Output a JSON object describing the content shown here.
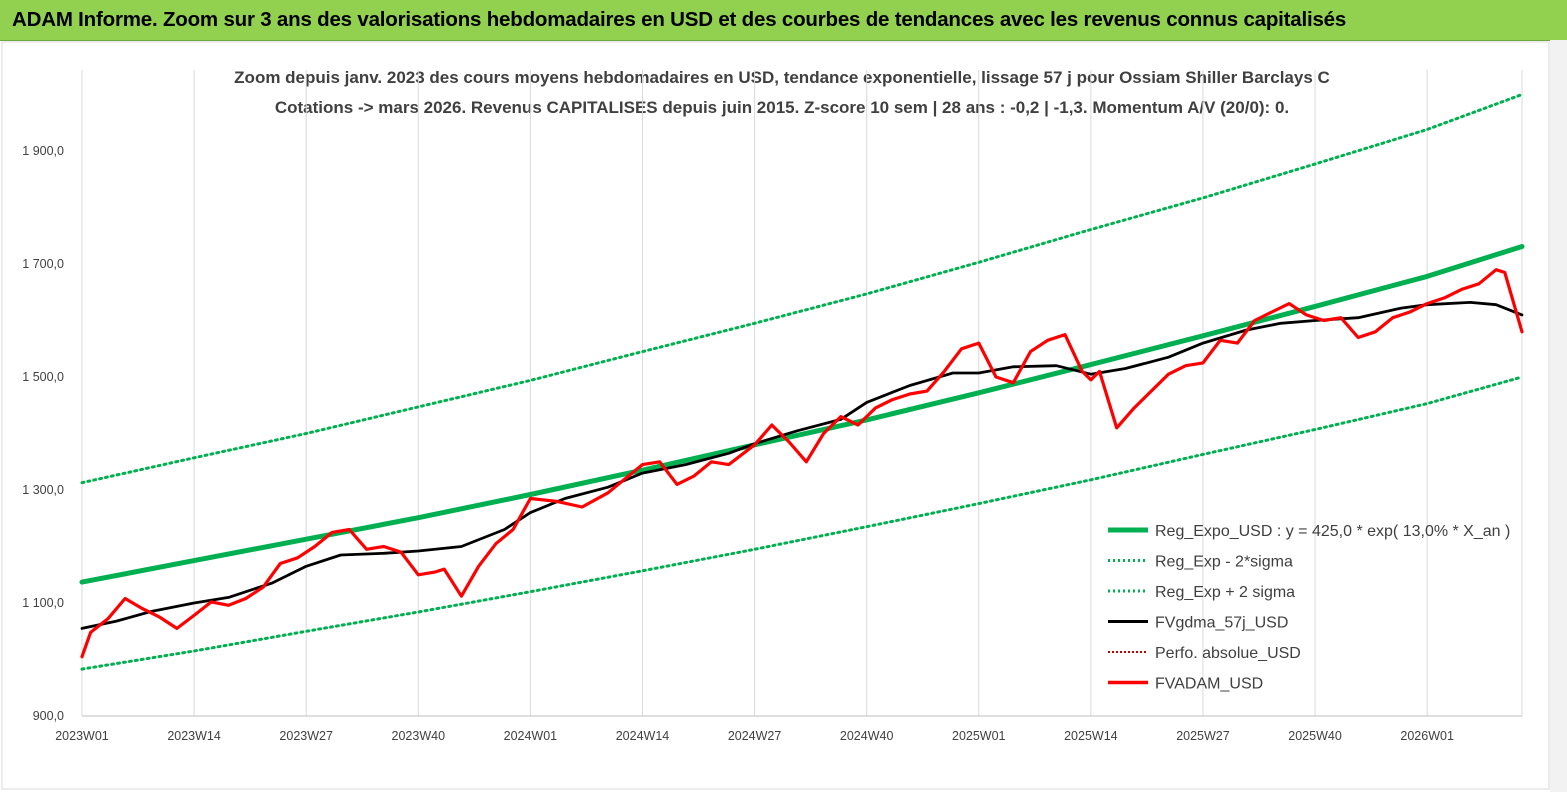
{
  "banner": {
    "title": "ADAM Informe. Zoom sur 3 ans des valorisations hebdomadaires en USD et des courbes de tendances avec les revenus connus capitalisés"
  },
  "colors": {
    "banner_bg": "#92d050",
    "reg_expo": "#00b050",
    "sigma": "#00b050",
    "fvgdma": "#000000",
    "perfo": "#c00000",
    "fvadam": "#ff0000"
  },
  "chart_data": {
    "type": "line",
    "title": "Zoom depuis janv. 2023 des cours moyens hebdomadaires en USD, tendance exponentielle, lissage 57 j pour Ossiam Shiller Barclays C",
    "subtitle": "Cotations -> mars 2026. Revenus CAPITALISES depuis juin 2015. Z-score 10 sem | 28 ans : -0,2 | -1,3. Momentum A/V (20/0): 0.",
    "xlabel": "",
    "ylabel": "",
    "ylim": [
      900,
      1950
    ],
    "yticks": [
      "900,0",
      "1 100,0",
      "1 300,0",
      "1 500,0",
      "1 700,0",
      "1 900,0"
    ],
    "xticks": [
      "2023W01",
      "2023W14",
      "2023W27",
      "2023W40",
      "2024W01",
      "2024W14",
      "2024W27",
      "2024W40",
      "2025W01",
      "2025W14",
      "2025W27",
      "2025W40",
      "2026W01"
    ],
    "grid": "vertical",
    "legend_position": "bottom-right",
    "legend": [
      "Reg_Expo_USD : y = 425,0 * exp( 13,0% *  X_an )",
      "Reg_Exp - 2*sigma",
      "Reg_Exp + 2 sigma",
      "FVgdma_57j_USD",
      "Perfo. absolue_USD",
      "FVADAM_USD"
    ],
    "series": [
      {
        "name": "Reg_Expo_USD : y = 425,0 * exp( 13,0% *  X_an )",
        "x": [
          "2023W01",
          "2023W14",
          "2023W27",
          "2023W40",
          "2024W01",
          "2024W14",
          "2024W27",
          "2024W40",
          "2025W01",
          "2025W14",
          "2025W27",
          "2025W40",
          "2026W01",
          "2026W12"
        ],
        "values": [
          1137,
          1175,
          1213,
          1251,
          1292,
          1335,
          1380,
          1424,
          1472,
          1522,
          1573,
          1625,
          1678,
          1731
        ]
      },
      {
        "name": "Reg_Exp - 2*sigma",
        "x": [
          "2023W01",
          "2023W14",
          "2023W27",
          "2023W40",
          "2024W01",
          "2024W14",
          "2024W27",
          "2024W40",
          "2025W01",
          "2025W14",
          "2025W27",
          "2025W40",
          "2026W01",
          "2026W12"
        ],
        "values": [
          983,
          1015,
          1050,
          1084,
          1120,
          1157,
          1195,
          1235,
          1276,
          1318,
          1363,
          1407,
          1453,
          1500
        ]
      },
      {
        "name": "Reg_Exp + 2 sigma",
        "x": [
          "2023W01",
          "2023W14",
          "2023W27",
          "2023W40",
          "2024W01",
          "2024W14",
          "2024W27",
          "2024W40",
          "2025W01",
          "2025W14",
          "2025W27",
          "2025W40",
          "2026W01",
          "2026W12"
        ],
        "values": [
          1313,
          1357,
          1400,
          1447,
          1494,
          1545,
          1595,
          1647,
          1703,
          1761,
          1817,
          1877,
          1938,
          2000
        ]
      },
      {
        "name": "FVgdma_57j_USD",
        "x": [
          "2023W01",
          "2023W05",
          "2023W09",
          "2023W14",
          "2023W18",
          "2023W23",
          "2023W27",
          "2023W31",
          "2023W36",
          "2023W40",
          "2023W45",
          "2023W50",
          "2024W01",
          "2024W05",
          "2024W10",
          "2024W14",
          "2024W19",
          "2024W24",
          "2024W27",
          "2024W32",
          "2024W37",
          "2024W40",
          "2024W45",
          "2024W50",
          "2025W01",
          "2025W05",
          "2025W10",
          "2025W14",
          "2025W18",
          "2025W23",
          "2025W27",
          "2025W32",
          "2025W36",
          "2025W40",
          "2025W45",
          "2025W50",
          "2026W01",
          "2026W06",
          "2026W09",
          "2026W12"
        ],
        "values": [
          1055,
          1068,
          1085,
          1100,
          1110,
          1135,
          1165,
          1185,
          1188,
          1192,
          1200,
          1230,
          1260,
          1285,
          1305,
          1330,
          1345,
          1365,
          1382,
          1405,
          1425,
          1455,
          1485,
          1507,
          1507,
          1518,
          1520,
          1505,
          1515,
          1535,
          1560,
          1583,
          1595,
          1600,
          1605,
          1622,
          1628,
          1632,
          1628,
          1610
        ]
      },
      {
        "name": "FVADAM_USD",
        "x": [
          "2023W01",
          "2023W02",
          "2023W04",
          "2023W06",
          "2023W08",
          "2023W10",
          "2023W12",
          "2023W14",
          "2023W16",
          "2023W18",
          "2023W20",
          "2023W22",
          "2023W24",
          "2023W26",
          "2023W28",
          "2023W30",
          "2023W32",
          "2023W34",
          "2023W36",
          "2023W38",
          "2023W40",
          "2023W42",
          "2023W43",
          "2023W45",
          "2023W47",
          "2023W49",
          "2023W51",
          "2024W01",
          "2024W04",
          "2024W07",
          "2024W10",
          "2024W12",
          "2024W14",
          "2024W16",
          "2024W18",
          "2024W20",
          "2024W22",
          "2024W24",
          "2024W27",
          "2024W29",
          "2024W31",
          "2024W33",
          "2024W35",
          "2024W37",
          "2024W39",
          "2024W41",
          "2024W43",
          "2024W45",
          "2024W47",
          "2024W49",
          "2024W51",
          "2025W01",
          "2025W03",
          "2025W05",
          "2025W07",
          "2025W09",
          "2025W11",
          "2025W13",
          "2025W14",
          "2025W15",
          "2025W17",
          "2025W19",
          "2025W21",
          "2025W23",
          "2025W25",
          "2025W27",
          "2025W29",
          "2025W31",
          "2025W33",
          "2025W35",
          "2025W37",
          "2025W39",
          "2025W41",
          "2025W43",
          "2025W45",
          "2025W47",
          "2025W49",
          "2025W51",
          "2026W01",
          "2026W03",
          "2026W05",
          "2026W07",
          "2026W09",
          "2026W10",
          "2026W12"
        ],
        "values": [
          1005,
          1048,
          1072,
          1108,
          1090,
          1075,
          1055,
          1078,
          1102,
          1096,
          1108,
          1128,
          1170,
          1180,
          1200,
          1225,
          1230,
          1195,
          1200,
          1190,
          1150,
          1155,
          1160,
          1112,
          1165,
          1205,
          1230,
          1285,
          1280,
          1270,
          1295,
          1320,
          1345,
          1350,
          1310,
          1325,
          1350,
          1345,
          1380,
          1415,
          1385,
          1350,
          1400,
          1430,
          1415,
          1445,
          1460,
          1470,
          1475,
          1510,
          1550,
          1560,
          1500,
          1490,
          1545,
          1565,
          1575,
          1510,
          1495,
          1510,
          1410,
          1445,
          1475,
          1505,
          1520,
          1525,
          1565,
          1560,
          1600,
          1615,
          1630,
          1610,
          1600,
          1605,
          1570,
          1580,
          1605,
          1615,
          1630,
          1640,
          1655,
          1665,
          1690,
          1685,
          1580
        ]
      }
    ]
  }
}
